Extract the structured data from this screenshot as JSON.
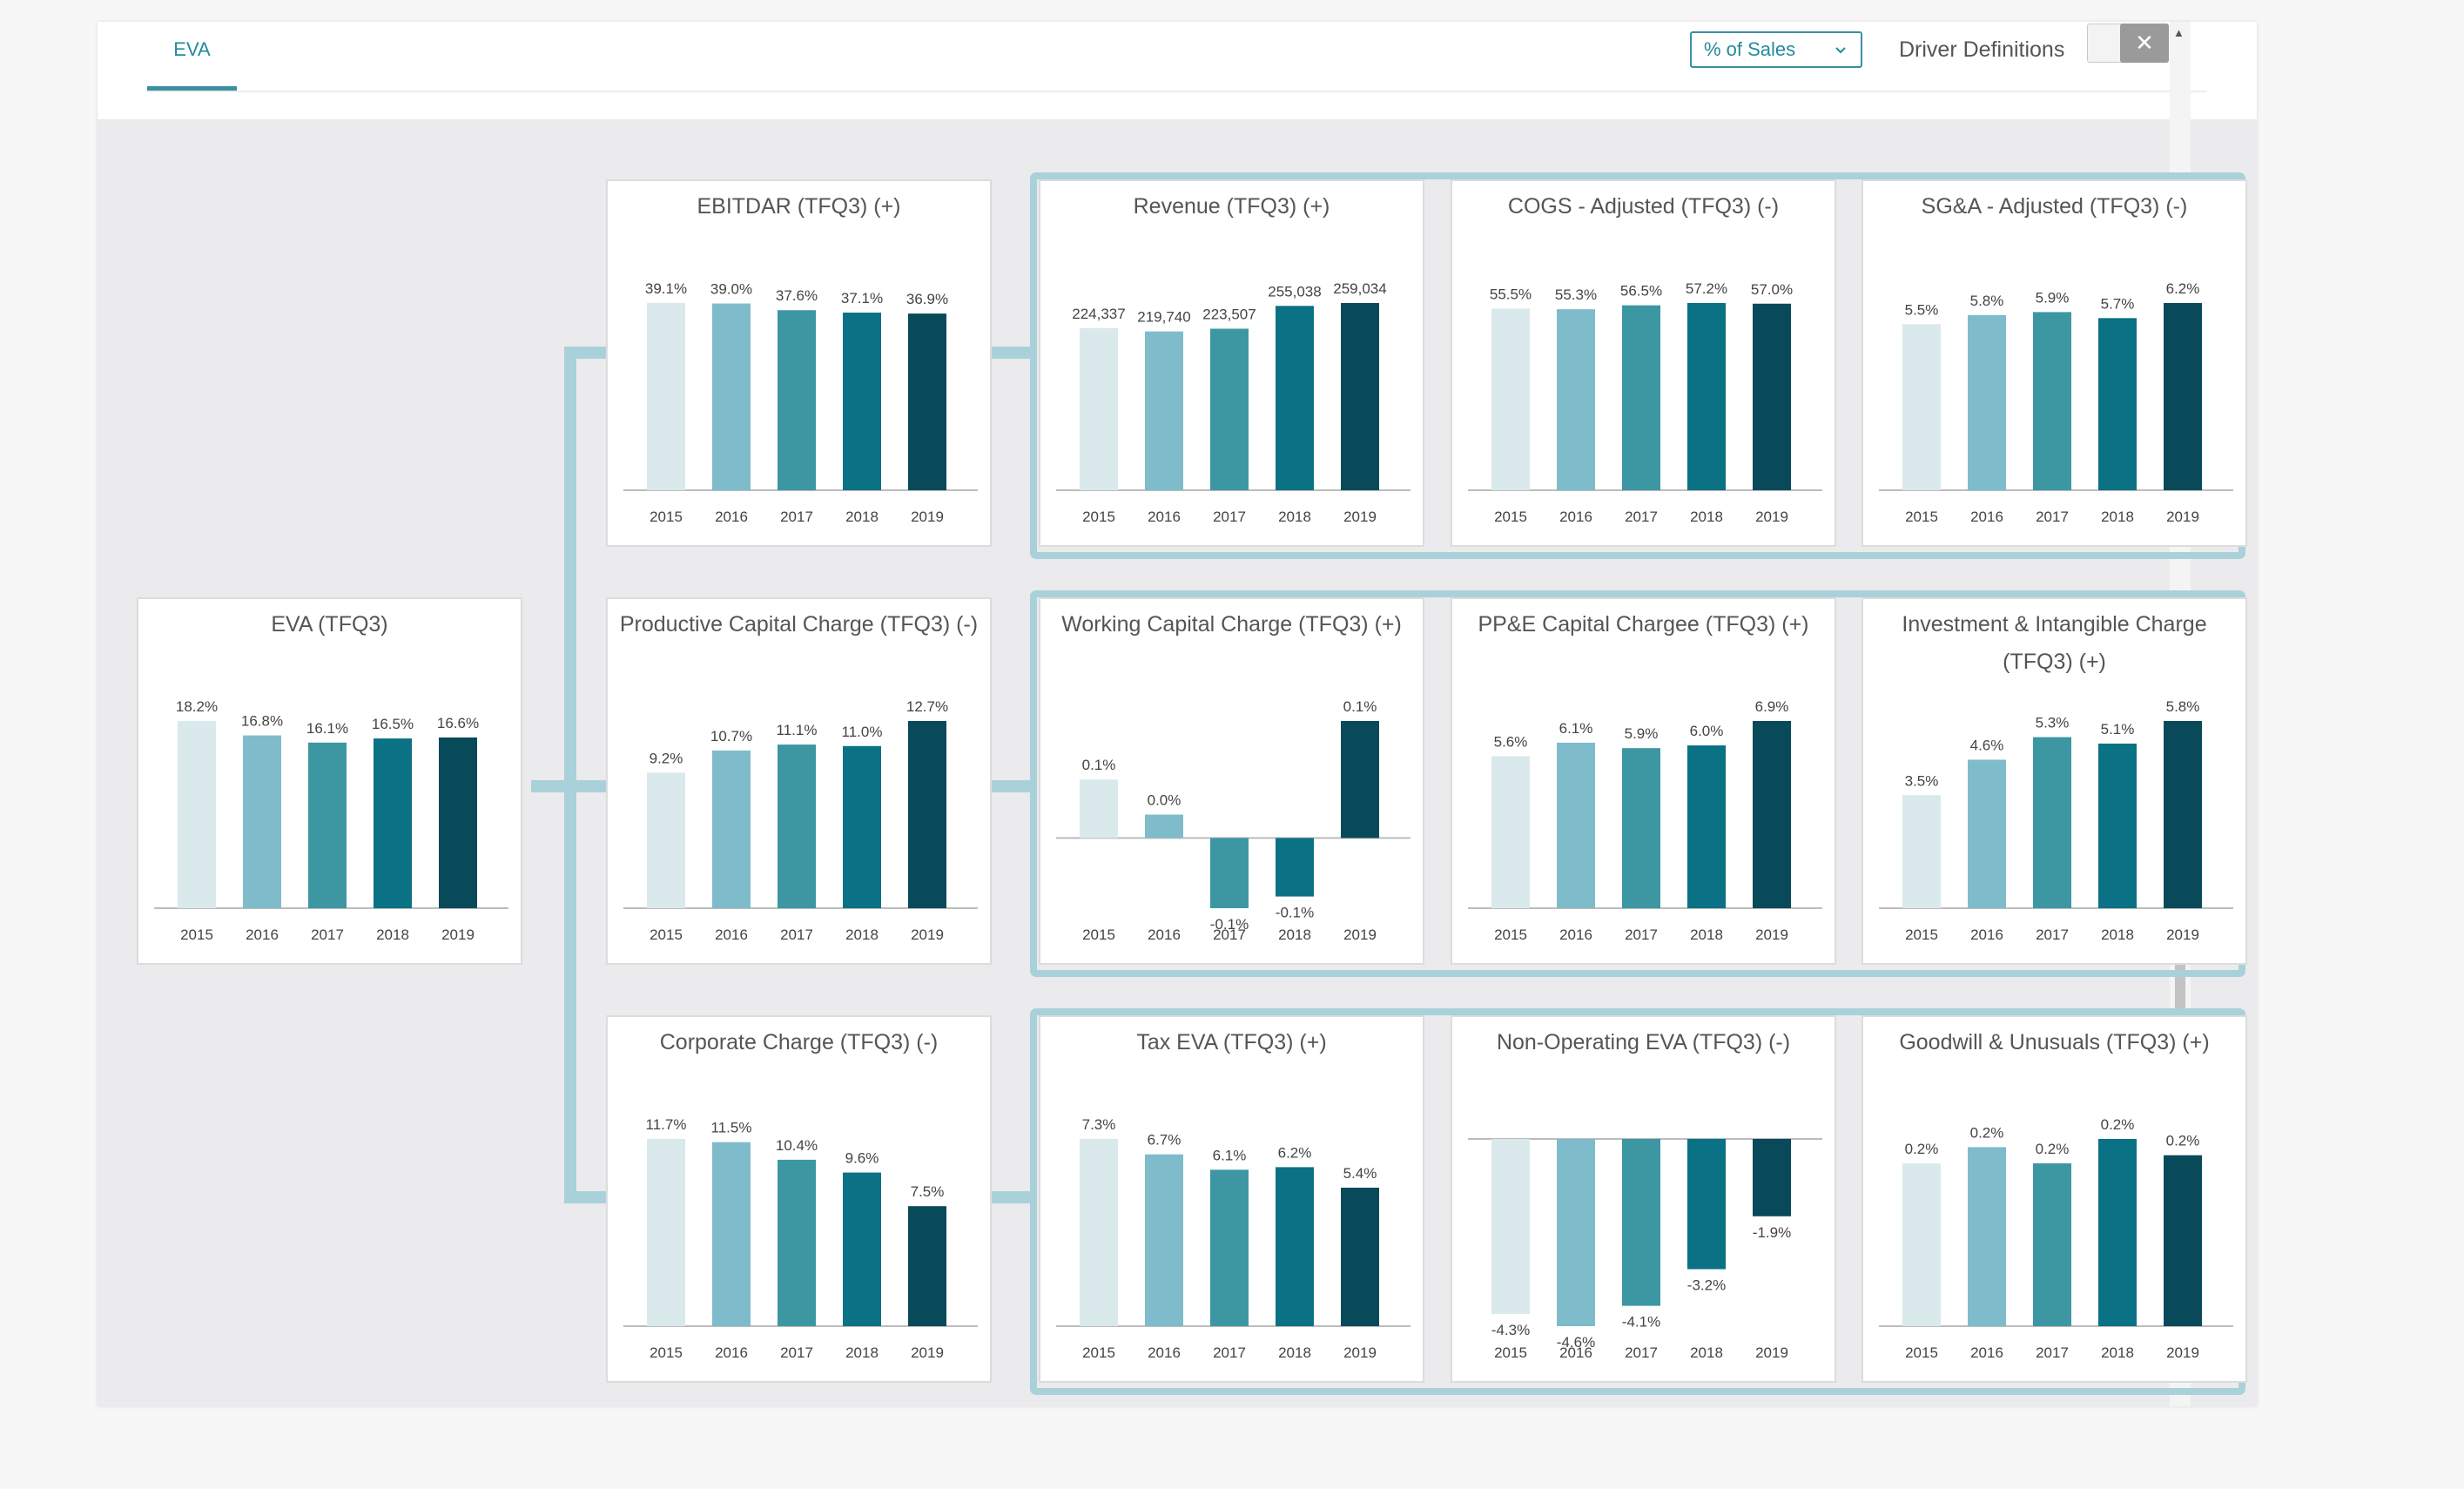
{
  "header": {
    "tab_label": "EVA",
    "select_value": "% of Sales",
    "driver_definitions_label": "Driver Definitions",
    "toggle_close_glyph": "✕"
  },
  "colors": {
    "bars": [
      "#d9e9ec",
      "#7fbccb",
      "#3d97a3",
      "#0b7184",
      "#084a59"
    ],
    "accent": "#238a9e",
    "connector": "#a9d1d9"
  },
  "chart_data": [
    {
      "id": "eva",
      "title": "EVA (TFQ3)",
      "type": "bar",
      "categories": [
        "2015",
        "2016",
        "2017",
        "2018",
        "2019"
      ],
      "values": [
        18.2,
        16.8,
        16.1,
        16.5,
        16.6
      ],
      "labels": [
        "18.2%",
        "16.8%",
        "16.1%",
        "16.5%",
        "16.6%"
      ]
    },
    {
      "id": "ebitdar",
      "title": "EBITDAR (TFQ3) (+)",
      "type": "bar",
      "categories": [
        "2015",
        "2016",
        "2017",
        "2018",
        "2019"
      ],
      "values": [
        39.1,
        39.0,
        37.6,
        37.1,
        36.9
      ],
      "labels": [
        "39.1%",
        "39.0%",
        "37.6%",
        "37.1%",
        "36.9%"
      ]
    },
    {
      "id": "revenue",
      "title": "Revenue (TFQ3) (+)",
      "type": "bar",
      "categories": [
        "2015",
        "2016",
        "2017",
        "2018",
        "2019"
      ],
      "values": [
        224337,
        219740,
        223507,
        255038,
        259034
      ],
      "labels": [
        "224,337",
        "219,740",
        "223,507",
        "255,038",
        "259,034"
      ]
    },
    {
      "id": "cogs",
      "title": "COGS - Adjusted (TFQ3) (-)",
      "type": "bar",
      "categories": [
        "2015",
        "2016",
        "2017",
        "2018",
        "2019"
      ],
      "values": [
        55.5,
        55.3,
        56.5,
        57.2,
        57.0
      ],
      "labels": [
        "55.5%",
        "55.3%",
        "56.5%",
        "57.2%",
        "57.0%"
      ]
    },
    {
      "id": "sga",
      "title": "SG&A - Adjusted (TFQ3) (-)",
      "type": "bar",
      "categories": [
        "2015",
        "2016",
        "2017",
        "2018",
        "2019"
      ],
      "values": [
        5.5,
        5.8,
        5.9,
        5.7,
        6.2
      ],
      "labels": [
        "5.5%",
        "5.8%",
        "5.9%",
        "5.7%",
        "6.2%"
      ]
    },
    {
      "id": "prod_capital",
      "title": "Productive Capital Charge (TFQ3) (-)",
      "type": "bar",
      "categories": [
        "2015",
        "2016",
        "2017",
        "2018",
        "2019"
      ],
      "values": [
        9.2,
        10.7,
        11.1,
        11.0,
        12.7
      ],
      "labels": [
        "9.2%",
        "10.7%",
        "11.1%",
        "11.0%",
        "12.7%"
      ]
    },
    {
      "id": "working_capital",
      "title": "Working Capital Charge (TFQ3) (+)",
      "type": "bar",
      "categories": [
        "2015",
        "2016",
        "2017",
        "2018",
        "2019"
      ],
      "values": [
        0.05,
        0.02,
        -0.06,
        -0.05,
        0.1
      ],
      "labels": [
        "0.1%",
        "0.0%",
        "-0.1%",
        "-0.1%",
        "0.1%"
      ]
    },
    {
      "id": "ppe",
      "title": "PP&E Capital Chargee (TFQ3) (+)",
      "type": "bar",
      "categories": [
        "2015",
        "2016",
        "2017",
        "2018",
        "2019"
      ],
      "values": [
        5.6,
        6.1,
        5.9,
        6.0,
        6.9
      ],
      "labels": [
        "5.6%",
        "6.1%",
        "5.9%",
        "6.0%",
        "6.9%"
      ]
    },
    {
      "id": "investment",
      "title": "Investment & Intangible Charge (TFQ3) (+)",
      "type": "bar",
      "categories": [
        "2015",
        "2016",
        "2017",
        "2018",
        "2019"
      ],
      "values": [
        3.5,
        4.6,
        5.3,
        5.1,
        5.8
      ],
      "labels": [
        "3.5%",
        "4.6%",
        "5.3%",
        "5.1%",
        "5.8%"
      ]
    },
    {
      "id": "corporate",
      "title": "Corporate Charge (TFQ3) (-)",
      "type": "bar",
      "categories": [
        "2015",
        "2016",
        "2017",
        "2018",
        "2019"
      ],
      "values": [
        11.7,
        11.5,
        10.4,
        9.6,
        7.5
      ],
      "labels": [
        "11.7%",
        "11.5%",
        "10.4%",
        "9.6%",
        "7.5%"
      ]
    },
    {
      "id": "tax",
      "title": "Tax EVA (TFQ3) (+)",
      "type": "bar",
      "categories": [
        "2015",
        "2016",
        "2017",
        "2018",
        "2019"
      ],
      "values": [
        7.3,
        6.7,
        6.1,
        6.2,
        5.4
      ],
      "labels": [
        "7.3%",
        "6.7%",
        "6.1%",
        "6.2%",
        "5.4%"
      ]
    },
    {
      "id": "non_operating",
      "title": "Non-Operating EVA (TFQ3) (-)",
      "type": "bar",
      "categories": [
        "2015",
        "2016",
        "2017",
        "2018",
        "2019"
      ],
      "values": [
        -4.3,
        -4.6,
        -4.1,
        -3.2,
        -1.9
      ],
      "labels": [
        "-4.3%",
        "-4.6%",
        "-4.1%",
        "-3.2%",
        "-1.9%"
      ]
    },
    {
      "id": "goodwill",
      "title": "Goodwill & Unusuals (TFQ3) (+)",
      "type": "bar",
      "categories": [
        "2015",
        "2016",
        "2017",
        "2018",
        "2019"
      ],
      "values": [
        0.2,
        0.22,
        0.2,
        0.23,
        0.21
      ],
      "labels": [
        "0.2%",
        "0.2%",
        "0.2%",
        "0.2%",
        "0.2%"
      ]
    }
  ]
}
